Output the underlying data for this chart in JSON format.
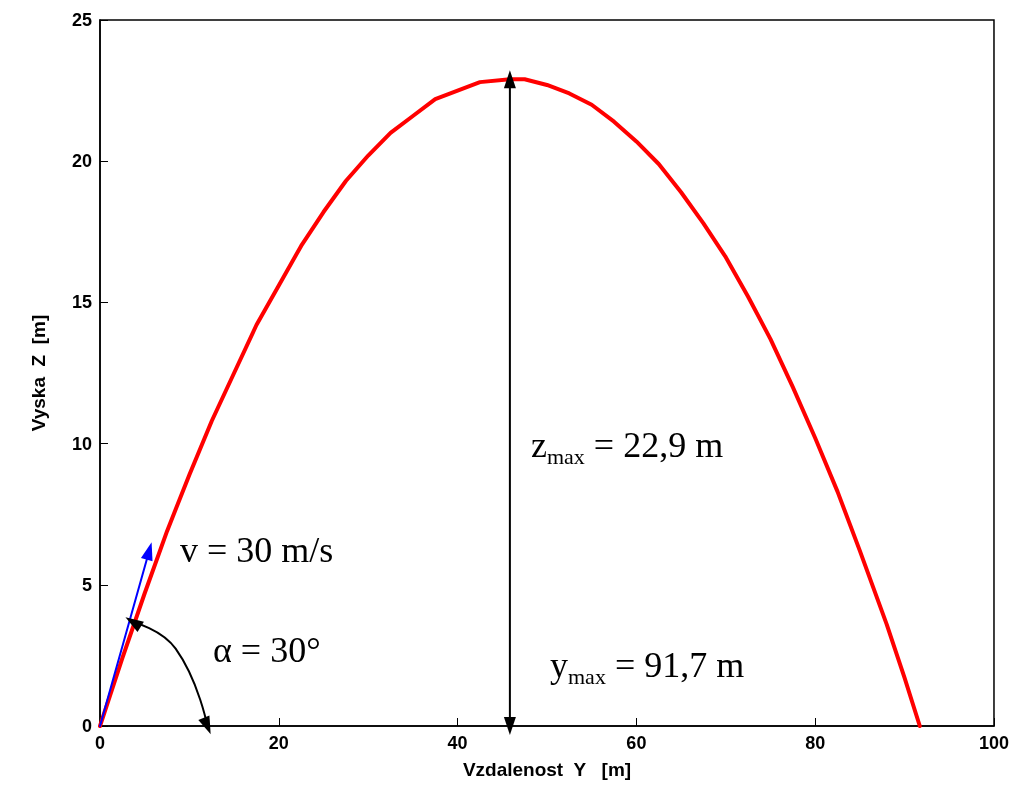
{
  "chart_data": {
    "type": "line",
    "xlabel": "Vzdalenost  Y   [m]",
    "ylabel": "Vyska  Z  [m]",
    "xlim": [
      0,
      100
    ],
    "ylim": [
      0,
      25
    ],
    "xticks": [
      0,
      20,
      40,
      60,
      80,
      100
    ],
    "yticks": [
      0,
      5,
      10,
      15,
      20,
      25
    ],
    "grid": false,
    "marker": "none",
    "line_style": "solid",
    "series": [
      {
        "color": "#ff0000",
        "x": [
          0,
          2.5,
          5,
          7.5,
          10,
          12.5,
          15,
          17.5,
          20,
          22.5,
          25,
          27.5,
          30,
          32.5,
          35,
          37.5,
          40,
          42.5,
          45.85,
          47.5,
          50,
          52.5,
          55,
          57.5,
          60,
          62.5,
          65,
          67.5,
          70,
          72.5,
          75,
          77.5,
          80,
          82.5,
          85,
          88,
          90,
          91.7
        ],
        "values": [
          0,
          2.4,
          4.7,
          6.9,
          8.9,
          10.8,
          12.5,
          14.2,
          15.6,
          17.0,
          18.2,
          19.3,
          20.2,
          21.0,
          21.6,
          22.2,
          22.5,
          22.8,
          22.9,
          22.9,
          22.7,
          22.4,
          22.0,
          21.4,
          20.7,
          19.9,
          18.9,
          17.8,
          16.6,
          15.2,
          13.7,
          12.0,
          10.2,
          8.3,
          6.2,
          3.6,
          1.7,
          0
        ]
      },
      {
        "color": "#0000ff",
        "marker": "triangle",
        "x": [
          0,
          5.5
        ],
        "values": [
          0,
          6.2
        ]
      },
      {
        "color": "#000000",
        "marker": "triangle",
        "x": [
          45.85,
          45.85
        ],
        "values": [
          0,
          22.9
        ]
      },
      {
        "color": "#000000",
        "marker": "triangle",
        "x": [
          12,
          8.46,
          3.7
        ],
        "values": [
          0,
          2.74,
          3.68
        ]
      }
    ],
    "annotations": [
      "z$_{max}$ = 22,9 m",
      "y$_{max}$ = 91,7 m",
      "v = 30 m/s",
      "α = 30°"
    ]
  }
}
